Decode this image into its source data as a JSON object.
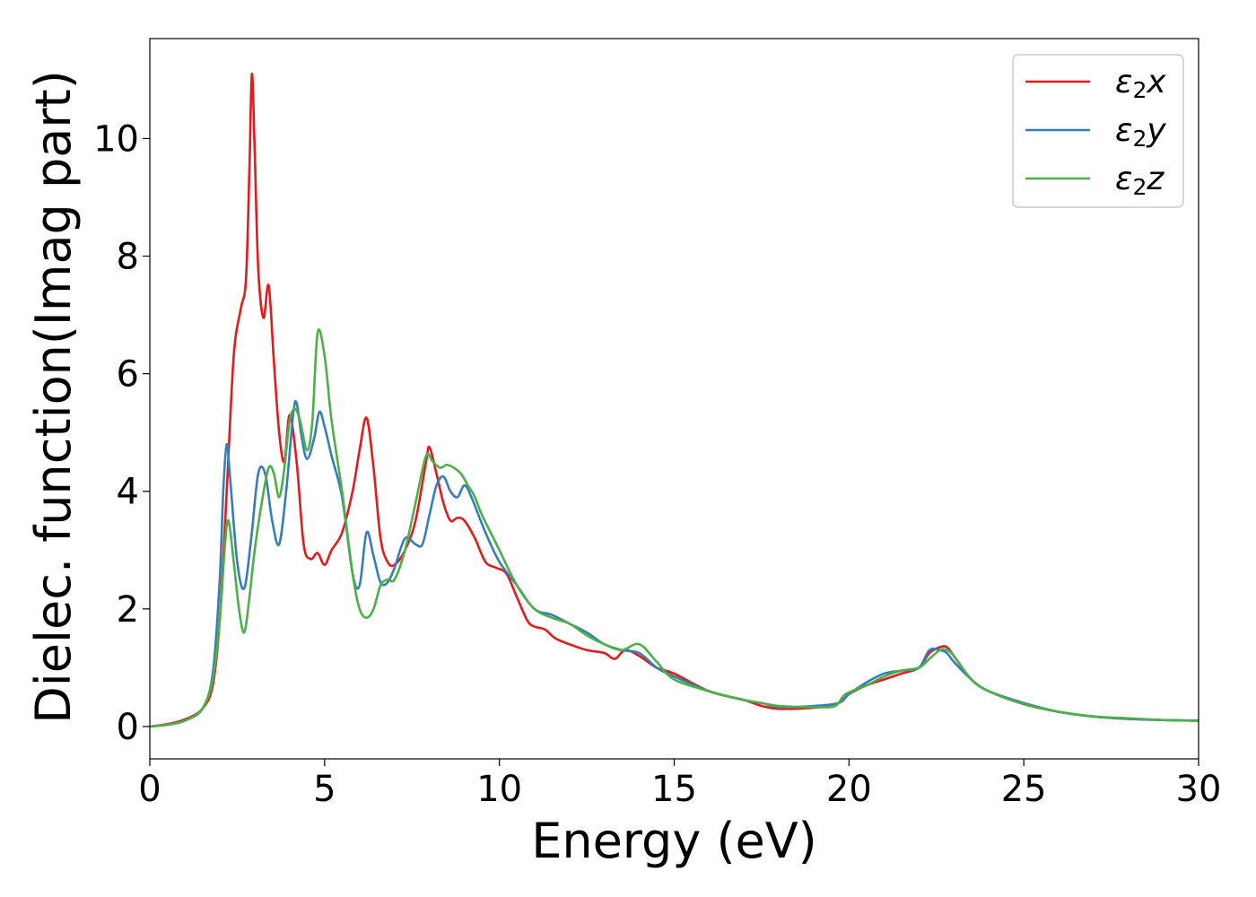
{
  "chart_data": {
    "type": "line",
    "xlabel": "Energy (eV)",
    "ylabel": "Dielec. function(Imag part)",
    "xlim": [
      0,
      30
    ],
    "ylim": [
      -0.55,
      11.7
    ],
    "xticks": [
      0,
      5,
      10,
      15,
      20,
      25,
      30
    ],
    "yticks": [
      0,
      2,
      4,
      6,
      8,
      10
    ],
    "grid": false,
    "legend_position": "top-right",
    "series": [
      {
        "name": "ε2x",
        "legend_main": "ε",
        "legend_sub": "2",
        "legend_suffix": "x",
        "color": "#e41a1c",
        "x": [
          0,
          0.5,
          1.0,
          1.5,
          1.8,
          2.0,
          2.2,
          2.4,
          2.6,
          2.75,
          2.85,
          2.92,
          3.0,
          3.1,
          3.25,
          3.4,
          3.55,
          3.7,
          3.85,
          4.0,
          4.2,
          4.4,
          4.6,
          4.8,
          5.0,
          5.2,
          5.5,
          5.8,
          6.0,
          6.2,
          6.4,
          6.6,
          6.8,
          7.0,
          7.3,
          7.6,
          7.9,
          8.0,
          8.2,
          8.4,
          8.6,
          8.8,
          9.0,
          9.3,
          9.6,
          9.9,
          10.2,
          10.5,
          10.8,
          11.0,
          11.3,
          11.6,
          12.0,
          12.5,
          13.0,
          13.3,
          13.6,
          14.0,
          14.5,
          15.0,
          16.0,
          17.0,
          17.5,
          18.0,
          19.0,
          19.7,
          20.0,
          20.5,
          21.0,
          21.5,
          22.0,
          22.3,
          22.6,
          22.8,
          23.0,
          23.5,
          24.0,
          25.0,
          26.0,
          27.0,
          28.0,
          29.0,
          30.0
        ],
        "y": [
          0.0,
          0.04,
          0.12,
          0.3,
          0.7,
          1.8,
          4.0,
          6.3,
          7.1,
          7.6,
          9.5,
          11.1,
          9.8,
          7.8,
          6.95,
          7.5,
          6.2,
          5.0,
          4.5,
          5.3,
          4.5,
          3.1,
          2.85,
          2.95,
          2.75,
          3.0,
          3.3,
          4.0,
          4.7,
          5.25,
          4.4,
          3.2,
          2.8,
          2.75,
          3.0,
          3.5,
          4.5,
          4.75,
          4.3,
          3.8,
          3.5,
          3.55,
          3.5,
          3.2,
          2.8,
          2.7,
          2.6,
          2.2,
          1.8,
          1.7,
          1.65,
          1.5,
          1.4,
          1.3,
          1.25,
          1.15,
          1.3,
          1.2,
          1.0,
          0.9,
          0.6,
          0.45,
          0.35,
          0.3,
          0.32,
          0.4,
          0.55,
          0.7,
          0.8,
          0.9,
          1.0,
          1.25,
          1.35,
          1.35,
          1.2,
          0.8,
          0.6,
          0.38,
          0.25,
          0.17,
          0.13,
          0.11,
          0.1
        ]
      },
      {
        "name": "ε2y",
        "legend_main": "ε",
        "legend_sub": "2",
        "legend_suffix": "y",
        "color": "#377eb8",
        "x": [
          0,
          0.5,
          1.0,
          1.5,
          1.8,
          2.0,
          2.1,
          2.2,
          2.3,
          2.5,
          2.7,
          2.9,
          3.1,
          3.3,
          3.5,
          3.7,
          3.9,
          4.1,
          4.2,
          4.35,
          4.5,
          4.7,
          4.85,
          5.0,
          5.2,
          5.5,
          5.8,
          6.0,
          6.2,
          6.4,
          6.6,
          6.8,
          7.0,
          7.3,
          7.6,
          7.8,
          8.0,
          8.2,
          8.4,
          8.6,
          8.8,
          9.0,
          9.2,
          9.6,
          10.0,
          10.5,
          11.0,
          11.5,
          12.0,
          12.5,
          13.0,
          13.5,
          14.0,
          14.5,
          15.0,
          16.0,
          17.0,
          17.5,
          18.0,
          19.0,
          19.7,
          20.0,
          20.5,
          21.0,
          21.5,
          22.0,
          22.3,
          22.6,
          22.8,
          23.0,
          23.5,
          24.0,
          25.0,
          26.0,
          27.0,
          28.0,
          29.0,
          30.0
        ],
        "y": [
          0.0,
          0.03,
          0.1,
          0.3,
          0.9,
          2.5,
          4.0,
          4.8,
          4.2,
          2.8,
          2.35,
          3.2,
          4.3,
          4.3,
          3.5,
          3.1,
          4.0,
          5.3,
          5.5,
          4.9,
          4.55,
          4.9,
          5.35,
          5.1,
          4.6,
          3.9,
          2.6,
          2.4,
          3.3,
          2.9,
          2.45,
          2.45,
          2.7,
          3.2,
          3.1,
          3.1,
          3.6,
          4.1,
          4.25,
          4.0,
          3.9,
          4.1,
          3.9,
          3.3,
          2.8,
          2.4,
          2.0,
          1.9,
          1.75,
          1.6,
          1.4,
          1.3,
          1.25,
          1.0,
          0.85,
          0.6,
          0.45,
          0.4,
          0.33,
          0.35,
          0.4,
          0.55,
          0.75,
          0.9,
          0.95,
          1.0,
          1.3,
          1.3,
          1.25,
          1.1,
          0.8,
          0.6,
          0.4,
          0.25,
          0.17,
          0.13,
          0.11,
          0.1
        ]
      },
      {
        "name": "ε2z",
        "legend_main": "ε",
        "legend_sub": "2",
        "legend_suffix": "z",
        "color": "#4daf4a",
        "x": [
          0,
          0.5,
          1.0,
          1.5,
          1.8,
          2.0,
          2.15,
          2.25,
          2.4,
          2.55,
          2.7,
          2.85,
          3.0,
          3.2,
          3.4,
          3.55,
          3.7,
          3.85,
          4.0,
          4.15,
          4.3,
          4.5,
          4.65,
          4.8,
          5.0,
          5.2,
          5.5,
          5.8,
          6.0,
          6.2,
          6.4,
          6.6,
          6.8,
          7.0,
          7.3,
          7.6,
          7.9,
          8.1,
          8.3,
          8.5,
          8.7,
          8.9,
          9.1,
          9.3,
          9.5,
          10.0,
          10.5,
          11.0,
          11.5,
          12.0,
          12.5,
          13.0,
          13.5,
          14.0,
          14.5,
          15.0,
          16.0,
          17.0,
          17.5,
          18.0,
          19.0,
          19.6,
          19.9,
          20.5,
          21.0,
          21.5,
          22.0,
          22.3,
          22.6,
          22.8,
          23.0,
          23.5,
          24.0,
          25.0,
          26.0,
          27.0,
          28.0,
          29.0,
          30.0
        ],
        "y": [
          0.0,
          0.03,
          0.1,
          0.3,
          0.8,
          1.8,
          3.1,
          3.5,
          2.8,
          2.0,
          1.6,
          2.2,
          3.0,
          3.8,
          4.4,
          4.3,
          3.9,
          4.4,
          5.2,
          5.4,
          5.2,
          4.7,
          5.2,
          6.7,
          6.3,
          5.2,
          4.0,
          2.6,
          2.0,
          1.85,
          2.0,
          2.4,
          2.5,
          2.5,
          3.0,
          3.8,
          4.6,
          4.5,
          4.4,
          4.45,
          4.4,
          4.3,
          4.1,
          3.9,
          3.6,
          3.0,
          2.4,
          2.0,
          1.85,
          1.75,
          1.55,
          1.4,
          1.3,
          1.4,
          1.1,
          0.8,
          0.6,
          0.45,
          0.4,
          0.35,
          0.33,
          0.35,
          0.55,
          0.7,
          0.85,
          0.95,
          1.0,
          1.15,
          1.3,
          1.3,
          1.2,
          0.8,
          0.6,
          0.38,
          0.25,
          0.17,
          0.14,
          0.11,
          0.1
        ]
      }
    ]
  }
}
